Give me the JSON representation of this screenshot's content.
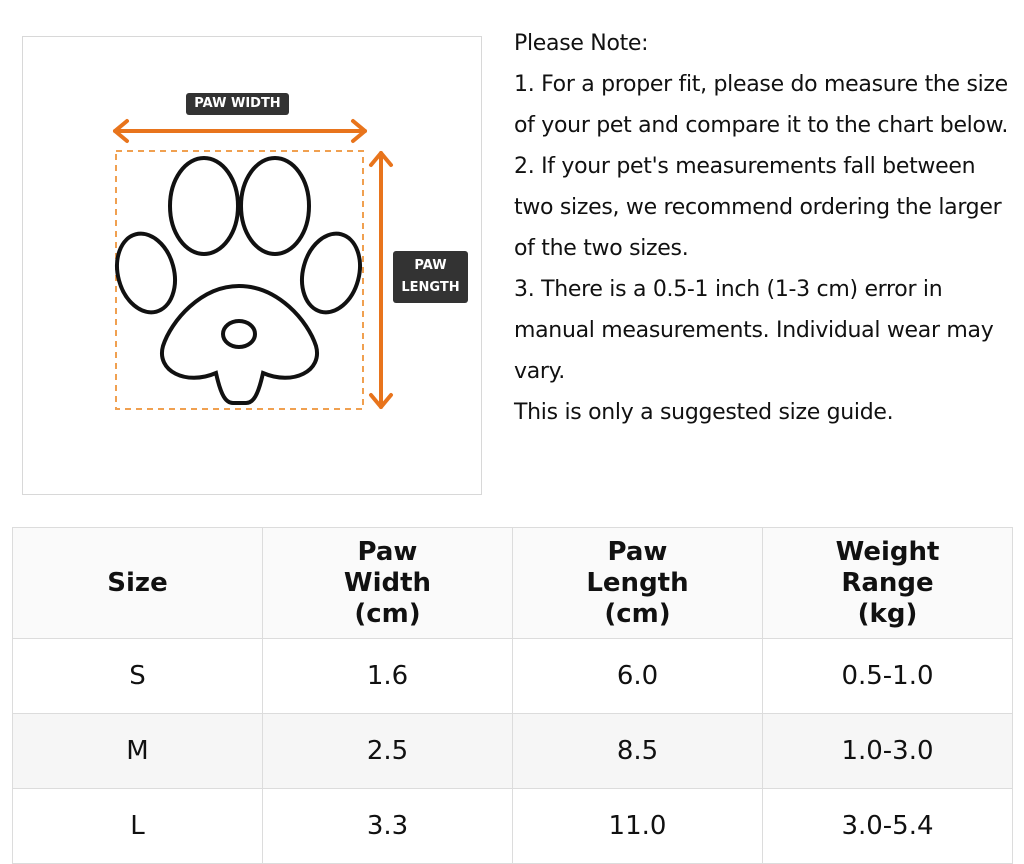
{
  "diagram": {
    "width_label": "PAW WIDTH",
    "length_label": "PAW LENGTH"
  },
  "notes": {
    "title": "Please Note:",
    "items": [
      "1. For a proper fit, please do measure the size of your pet and compare it to the chart below.",
      "2. If your pet's measurements fall between two sizes, we recommend ordering the larger of the two sizes.",
      "3. There is a 0.5-1 inch (1-3 cm) error in manual measurements. Individual wear may vary."
    ],
    "footer": "This is only a suggested size guide."
  },
  "table": {
    "headers": [
      "Size",
      "Paw Width (cm)",
      "Paw Length (cm)",
      "Weight Range (kg)"
    ],
    "rows": [
      [
        "S",
        "1.6",
        "6.0",
        "0.5-1.0"
      ],
      [
        "M",
        "2.5",
        "8.5",
        "1.0-3.0"
      ],
      [
        "L",
        "3.3",
        "11.0",
        "3.0-5.4"
      ]
    ]
  }
}
